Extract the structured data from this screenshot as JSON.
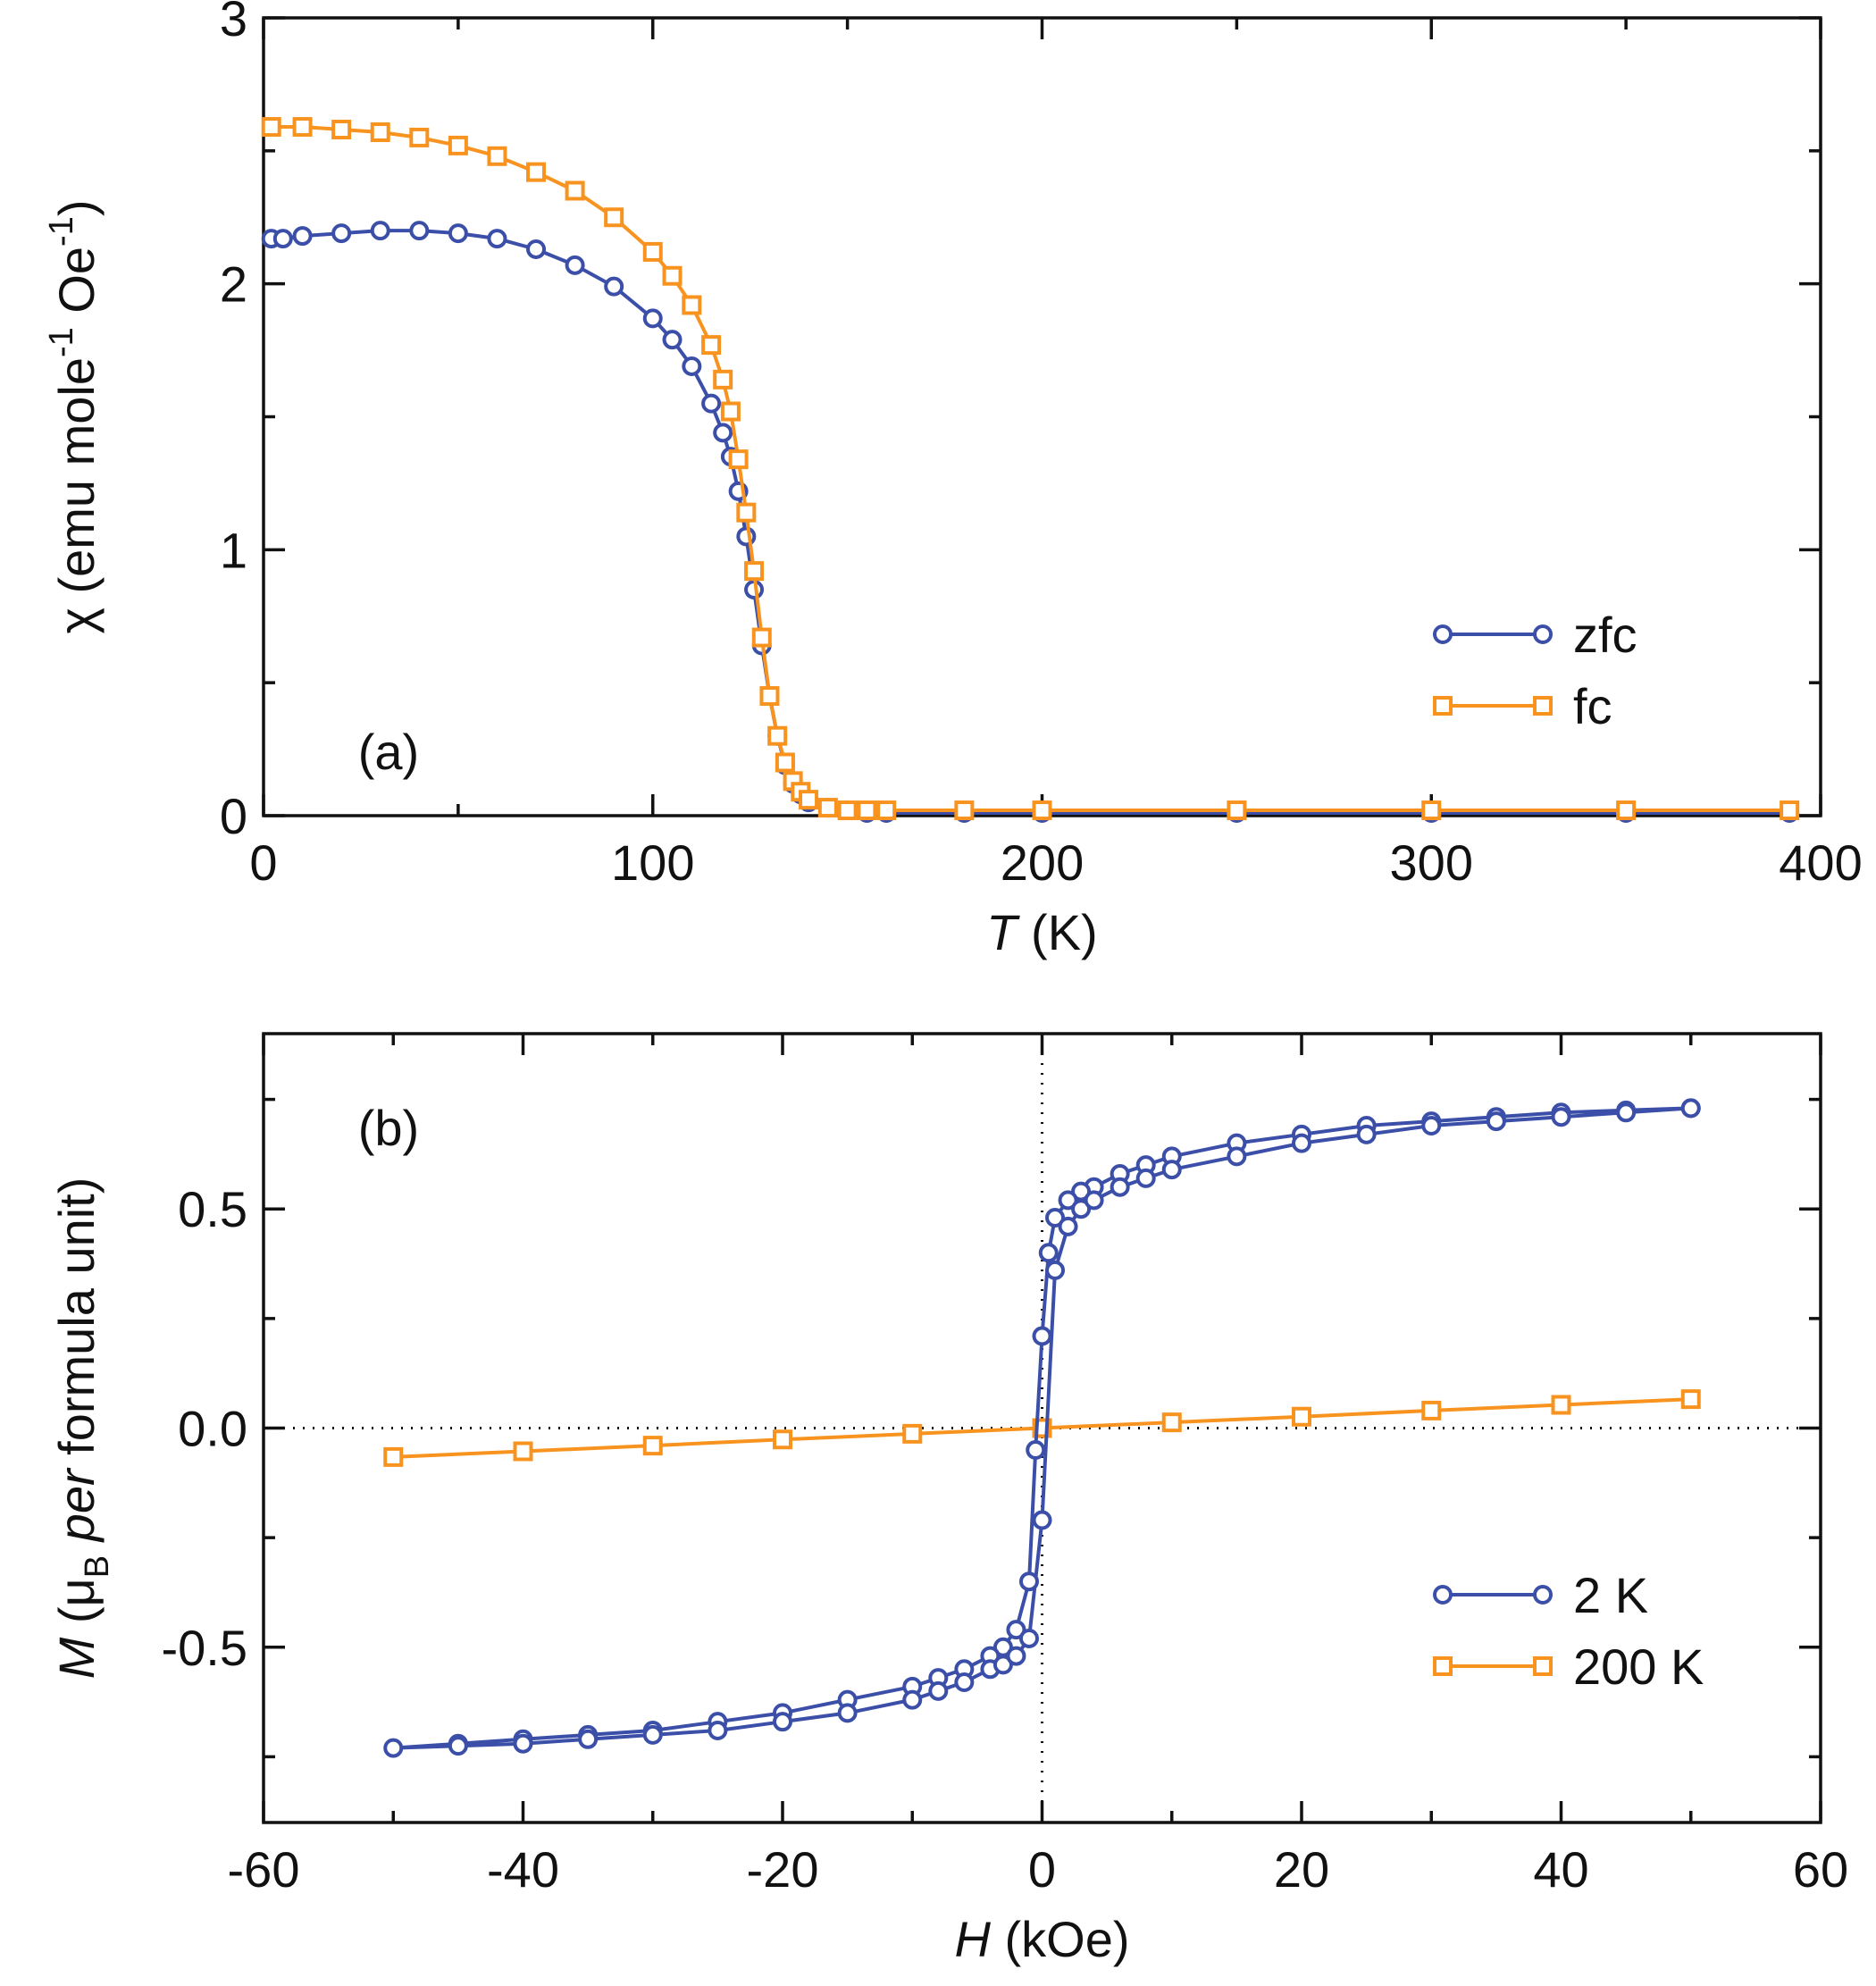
{
  "colors": {
    "blue": "#3b4fa8",
    "orange": "#f7931e",
    "axis": "#111111"
  },
  "chart_data": [
    {
      "type": "line",
      "panel_label": "(a)",
      "title": "",
      "xlabel_symbol": "T",
      "xlabel_unit": " (K)",
      "ylabel_parts": [
        "χ (emu mole",
        "-1",
        " Oe",
        "-1",
        ")"
      ],
      "xlim": [
        0,
        400
      ],
      "ylim": [
        0,
        3
      ],
      "xticks": [
        0,
        100,
        200,
        300,
        400
      ],
      "xtick_labels": [
        "0",
        "100",
        "200",
        "300",
        "400"
      ],
      "yticks": [
        0,
        1,
        2,
        3
      ],
      "ytick_labels": [
        "0",
        "1",
        "2",
        "3"
      ],
      "legend_position": "right, middle",
      "series": [
        {
          "name": "zfc",
          "marker": "circle",
          "color": "#3b4fa8",
          "x": [
            2,
            5,
            10,
            20,
            30,
            40,
            50,
            60,
            70,
            80,
            90,
            100,
            105,
            110,
            115,
            118,
            120,
            122,
            124,
            126,
            128,
            130,
            132,
            134,
            136,
            138,
            140,
            145,
            150,
            155,
            160,
            180,
            200,
            250,
            300,
            350,
            392
          ],
          "y": [
            2.17,
            2.17,
            2.18,
            2.19,
            2.2,
            2.2,
            2.19,
            2.17,
            2.13,
            2.07,
            1.99,
            1.87,
            1.79,
            1.69,
            1.55,
            1.44,
            1.35,
            1.22,
            1.05,
            0.85,
            0.64,
            0.45,
            0.3,
            0.19,
            0.12,
            0.08,
            0.05,
            0.03,
            0.02,
            0.01,
            0.01,
            0.01,
            0.01,
            0.01,
            0.01,
            0.01,
            0.01
          ]
        },
        {
          "name": "fc",
          "marker": "square",
          "color": "#f7931e",
          "x": [
            2,
            10,
            20,
            30,
            40,
            50,
            60,
            70,
            80,
            90,
            100,
            105,
            110,
            115,
            118,
            120,
            122,
            124,
            126,
            128,
            130,
            132,
            134,
            136,
            138,
            140,
            145,
            150,
            155,
            160,
            180,
            200,
            250,
            300,
            350,
            392
          ],
          "y": [
            2.59,
            2.59,
            2.58,
            2.57,
            2.55,
            2.52,
            2.48,
            2.42,
            2.35,
            2.25,
            2.12,
            2.03,
            1.92,
            1.77,
            1.64,
            1.52,
            1.34,
            1.14,
            0.92,
            0.67,
            0.45,
            0.3,
            0.2,
            0.13,
            0.09,
            0.06,
            0.03,
            0.02,
            0.02,
            0.02,
            0.02,
            0.02,
            0.02,
            0.02,
            0.02,
            0.02
          ]
        }
      ]
    },
    {
      "type": "line",
      "panel_label": "(b)",
      "title": "",
      "xlabel_symbol": "H",
      "xlabel_unit": " (kOe)",
      "ylabel_parts": [
        "M",
        " (μ",
        "B",
        " ",
        "per",
        " formula unit)"
      ],
      "xlim": [
        -60,
        60
      ],
      "ylim": [
        -0.9,
        0.9
      ],
      "xticks": [
        -60,
        -40,
        -20,
        0,
        20,
        40,
        60
      ],
      "xtick_labels": [
        "-60",
        "-40",
        "-20",
        "0",
        "20",
        "40",
        "60"
      ],
      "yticks": [
        -0.5,
        0,
        0.5
      ],
      "ytick_labels": [
        "-0.5",
        "0.0",
        "0.5"
      ],
      "legend_position": "bottom-right",
      "series": [
        {
          "name": "2 K",
          "marker": "circle",
          "color": "#3b4fa8",
          "x": [
            50,
            45,
            40,
            35,
            30,
            25,
            20,
            15,
            10,
            8,
            6,
            4,
            3,
            2,
            1,
            0.5,
            0,
            -0.5,
            -1,
            -2,
            -3,
            -4,
            -6,
            -8,
            -10,
            -15,
            -20,
            -25,
            -30,
            -35,
            -40,
            -45,
            -50,
            -45,
            -40,
            -35,
            -30,
            -25,
            -20,
            -15,
            -10,
            -8,
            -6,
            -4,
            -3,
            -2,
            -1,
            0,
            1,
            2,
            3,
            4,
            6,
            8,
            10,
            15,
            20,
            25,
            30,
            35,
            40,
            45,
            50
          ],
          "y": [
            0.73,
            0.725,
            0.72,
            0.71,
            0.7,
            0.69,
            0.67,
            0.65,
            0.62,
            0.6,
            0.58,
            0.55,
            0.54,
            0.52,
            0.48,
            0.4,
            0.21,
            -0.05,
            -0.35,
            -0.46,
            -0.5,
            -0.52,
            -0.55,
            -0.57,
            -0.59,
            -0.62,
            -0.65,
            -0.67,
            -0.69,
            -0.7,
            -0.71,
            -0.72,
            -0.73,
            -0.725,
            -0.72,
            -0.71,
            -0.7,
            -0.69,
            -0.67,
            -0.65,
            -0.62,
            -0.6,
            -0.58,
            -0.55,
            -0.54,
            -0.52,
            -0.48,
            -0.21,
            0.36,
            0.46,
            0.5,
            0.52,
            0.55,
            0.57,
            0.59,
            0.62,
            0.65,
            0.67,
            0.69,
            0.7,
            0.71,
            0.72,
            0.73
          ]
        },
        {
          "name": "200 K",
          "marker": "square",
          "color": "#f7931e",
          "x": [
            -50,
            -40,
            -30,
            -20,
            -10,
            0,
            10,
            20,
            30,
            40,
            50
          ],
          "y": [
            -0.066,
            -0.053,
            -0.04,
            -0.026,
            -0.013,
            0,
            0.013,
            0.026,
            0.04,
            0.053,
            0.066
          ]
        }
      ]
    }
  ]
}
